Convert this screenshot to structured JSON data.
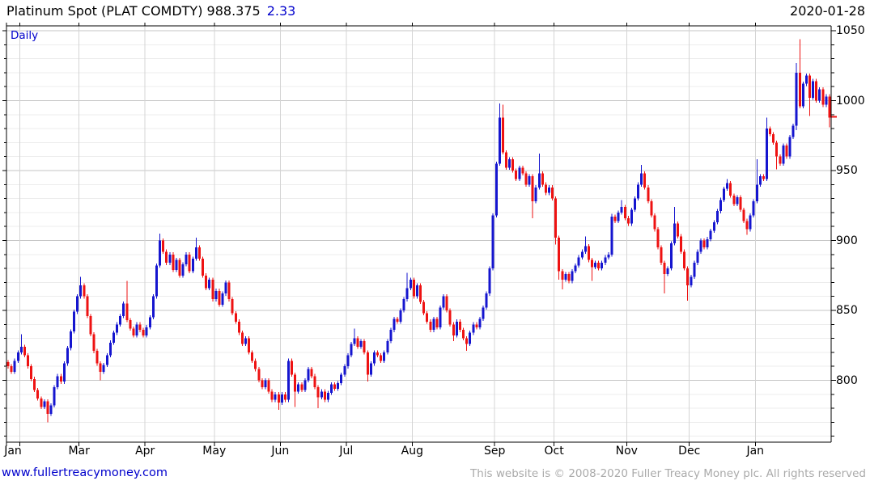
{
  "header": {
    "title_main": "Platinum Spot (PLAT COMDTY) 988.375",
    "change": "2.33",
    "date": "2020-01-28"
  },
  "chart": {
    "timeframe_label": "Daily"
  },
  "footer": {
    "website": "www.fullertreacymoney.com",
    "copyright": "This website is © 2008-2020 Fuller Treacy Money plc. All rights reserved"
  },
  "chart_data": {
    "type": "candlestick",
    "title": "Platinum Spot (PLAT COMDTY)",
    "timeframe": "Daily",
    "last_price": 988.375,
    "change": 2.33,
    "date": "2020-01-28",
    "ylim": [
      756,
      1053
    ],
    "y_ticks_major": [
      800,
      850,
      900,
      950,
      1000,
      1050
    ],
    "y_minor_step": 10,
    "grid": true,
    "up_color": "#1515cf",
    "down_color": "#ee1212",
    "frame_color": "#000000",
    "major_grid_color": "#c6c6c6",
    "minor_grid_color": "#ececec",
    "month_grid_color": "#d4d4d4",
    "x_labels": [
      {
        "label": "Jan",
        "day": 0
      },
      {
        "label": "Mar",
        "day": 22
      },
      {
        "label": "Apr",
        "day": 42
      },
      {
        "label": "May",
        "day": 63
      },
      {
        "label": "Jun",
        "day": 83
      },
      {
        "label": "Jul",
        "day": 103
      },
      {
        "label": "Aug",
        "day": 123
      },
      {
        "label": "Sep",
        "day": 148
      },
      {
        "label": "Oct",
        "day": 166
      },
      {
        "label": "Nov",
        "day": 188
      },
      {
        "label": "Dec",
        "day": 207
      },
      {
        "label": "Jan",
        "day": 227
      }
    ],
    "month_tick_days": [
      0,
      4,
      22,
      42,
      63,
      83,
      103,
      123,
      148,
      166,
      188,
      207,
      227
    ],
    "first_open": 813,
    "closes": [
      810,
      806,
      814,
      820,
      824,
      818,
      810,
      801,
      793,
      787,
      781,
      785,
      776,
      782,
      795,
      803,
      799,
      812,
      823,
      835,
      849,
      860,
      868,
      860,
      846,
      833,
      821,
      812,
      806,
      811,
      818,
      827,
      834,
      840,
      846,
      855,
      843,
      837,
      832,
      840,
      836,
      832,
      838,
      845,
      860,
      882,
      900,
      892,
      884,
      890,
      879,
      886,
      875,
      883,
      890,
      878,
      887,
      895,
      887,
      875,
      866,
      872,
      858,
      864,
      854,
      862,
      870,
      858,
      848,
      842,
      834,
      826,
      830,
      820,
      814,
      808,
      800,
      795,
      800,
      792,
      786,
      790,
      784,
      790,
      786,
      814,
      804,
      792,
      797,
      793,
      800,
      808,
      803,
      795,
      788,
      792,
      786,
      791,
      797,
      794,
      798,
      804,
      810,
      818,
      826,
      830,
      824,
      828,
      820,
      804,
      812,
      820,
      818,
      814,
      820,
      828,
      836,
      844,
      842,
      850,
      858,
      866,
      872,
      860,
      868,
      856,
      848,
      842,
      836,
      844,
      838,
      852,
      860,
      850,
      840,
      832,
      842,
      836,
      830,
      826,
      834,
      840,
      838,
      844,
      852,
      862,
      880,
      918,
      955,
      988,
      963,
      952,
      958,
      950,
      944,
      952,
      948,
      940,
      946,
      928,
      938,
      948,
      940,
      934,
      938,
      930,
      902,
      878,
      872,
      876,
      871,
      878,
      882,
      888,
      892,
      896,
      886,
      881,
      884,
      880,
      884,
      888,
      890,
      917,
      914,
      920,
      924,
      916,
      912,
      922,
      930,
      940,
      948,
      938,
      928,
      918,
      908,
      895,
      884,
      876,
      880,
      898,
      912,
      903,
      892,
      880,
      868,
      874,
      884,
      892,
      900,
      895,
      901,
      907,
      913,
      921,
      929,
      937,
      941,
      932,
      926,
      931,
      922,
      914,
      908,
      918,
      928,
      940,
      946,
      944,
      980,
      976,
      970,
      960,
      955,
      968,
      960,
      974,
      982,
      1020,
      996,
      1012,
      1018,
      1002,
      1014,
      1000,
      1008,
      997,
      1003,
      988
    ],
    "wick_high_overrides": {
      "4": 833,
      "22": 874,
      "36": 871,
      "46": 905,
      "57": 902,
      "105": 837,
      "121": 877,
      "149": 998,
      "150": 997,
      "161": 962,
      "175": 903,
      "183": 919,
      "186": 929,
      "192": 954,
      "202": 924,
      "218": 944,
      "227": 958,
      "230": 988,
      "239": 1027,
      "240": 1044
    },
    "wick_low_overrides": {
      "12": 770,
      "28": 800,
      "82": 779,
      "87": 781,
      "94": 780,
      "109": 799,
      "135": 828,
      "139": 821,
      "159": 916,
      "166": 897,
      "167": 872,
      "168": 865,
      "177": 871,
      "199": 862,
      "206": 857,
      "224": 904,
      "233": 951,
      "239": 979,
      "243": 989,
      "249": 981
    },
    "last_price_marker": 988.375
  }
}
